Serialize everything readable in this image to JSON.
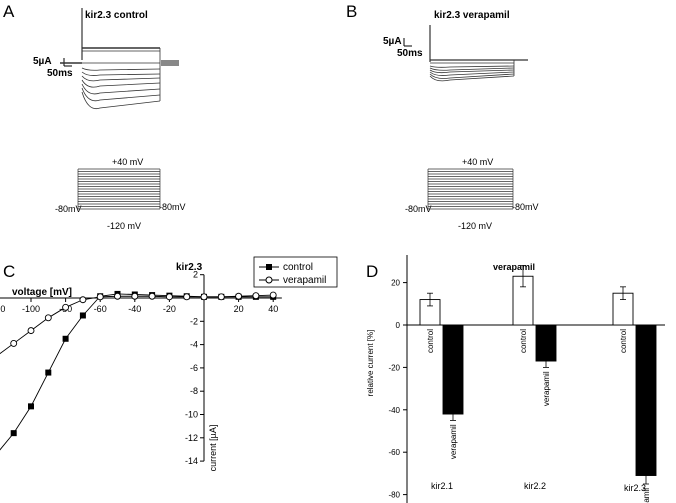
{
  "panels": {
    "a": {
      "letter": "A",
      "title": "kir2.3 control"
    },
    "b": {
      "letter": "B",
      "title": "kir2.3 verapamil"
    },
    "c": {
      "letter": "C"
    },
    "d": {
      "letter": "D"
    }
  },
  "scale_bar": {
    "current": "5µA",
    "time": "50ms"
  },
  "protocol": {
    "top": "+40 mV",
    "bottom": "-120 mV",
    "holding": "-80mV"
  },
  "chart_data": [
    {
      "type": "line",
      "title": "kir2.3",
      "xlabel": "voltage [mV]",
      "ylabel": "current [µA]",
      "xlim": [
        -130,
        45
      ],
      "ylim": [
        -14,
        2
      ],
      "x_ticks": [
        -120,
        -100,
        -80,
        -60,
        -40,
        -20,
        0,
        20,
        40
      ],
      "x_tick_labels": [
        "-120",
        "-100",
        "-80",
        "-60",
        "-40",
        "-20",
        "",
        "20",
        "40"
      ],
      "y_ticks": [
        2,
        0,
        -2,
        -4,
        -6,
        -8,
        -10,
        -12,
        -14
      ],
      "y_tick_labels": [
        "2",
        "",
        "-2",
        "-4",
        "-6",
        "-8",
        "-10",
        "-12",
        "-14"
      ],
      "legend": "top-right",
      "series": [
        {
          "name": "control",
          "marker": "filled-square",
          "x": [
            -120,
            -110,
            -100,
            -90,
            -80,
            -70,
            -60,
            -50,
            -40,
            -30,
            -20,
            -10,
            0,
            10,
            20,
            30,
            40
          ],
          "y": [
            -13.4,
            -11.6,
            -9.3,
            -6.4,
            -3.5,
            -1.5,
            0.15,
            0.35,
            0.3,
            0.25,
            0.2,
            0.15,
            0.1,
            0.1,
            0.1,
            0.1,
            0.1
          ]
        },
        {
          "name": "verapamil",
          "marker": "open-circle",
          "x": [
            -120,
            -110,
            -100,
            -90,
            -80,
            -70,
            -60,
            -50,
            -40,
            -30,
            -20,
            -10,
            0,
            10,
            20,
            30,
            40
          ],
          "y": [
            -5.0,
            -3.9,
            -2.8,
            -1.7,
            -0.8,
            -0.15,
            0.1,
            0.15,
            0.15,
            0.15,
            0.1,
            0.1,
            0.1,
            0.1,
            0.15,
            0.2,
            0.25
          ]
        }
      ]
    },
    {
      "type": "bar",
      "title": "verapamil",
      "ylabel": "relative current [%]",
      "ylim": [
        -90,
        40
      ],
      "y_ticks": [
        40,
        20,
        0,
        -20,
        -40,
        -60,
        -80
      ],
      "groups": [
        "kir2.1",
        "kir2.2",
        "kir2.3"
      ],
      "series": [
        {
          "name": "control",
          "fill": "#ffffff",
          "values": [
            12,
            23,
            15
          ],
          "errors": [
            3,
            5,
            3
          ]
        },
        {
          "name": "verapamil",
          "fill": "#000000",
          "values": [
            -42,
            -17,
            -71
          ],
          "errors": [
            3,
            3,
            4
          ]
        }
      ]
    }
  ]
}
